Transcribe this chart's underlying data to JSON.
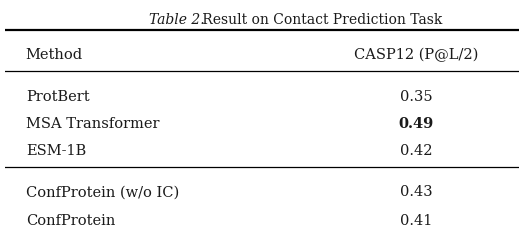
{
  "title_italic": "Table 2.",
  "title_normal": " Result on Contact Prediction Task",
  "col_header_left": "Method",
  "col_header_right": "CASP12 (P@L/2)",
  "group1_methods": [
    "ProtBert",
    "MSA Transformer",
    "ESM-1B"
  ],
  "group1_values": [
    "0.35",
    "0.49",
    "0.42"
  ],
  "group1_bold": [
    false,
    true,
    false
  ],
  "group2_methods": [
    "ConfProtein (w/o IC)",
    "ConfProtein"
  ],
  "group2_values": [
    "0.43",
    "0.41"
  ],
  "bg_color": "#ffffff",
  "text_color": "#1a1a1a",
  "font_size": 10.5,
  "title_font_size": 10.0
}
